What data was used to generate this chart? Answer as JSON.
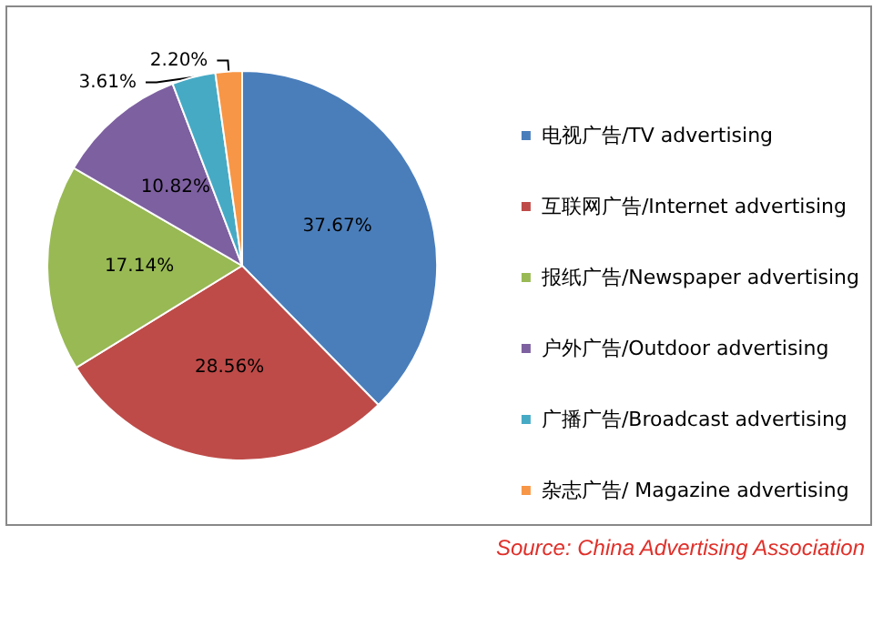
{
  "chart_data": {
    "type": "pie",
    "categories": [
      "电视广告/TV advertising",
      "互联网广告/Internet advertising",
      "报纸广告/Newspaper advertising",
      "户外广告/Outdoor advertising",
      "广播广告/Broadcast advertising",
      "杂志广告/ Magazine advertising"
    ],
    "values": [
      37.67,
      28.56,
      17.14,
      10.82,
      3.61,
      2.2
    ],
    "value_labels": [
      "37.67%",
      "28.56%",
      "17.14%",
      "10.82%",
      "3.61%",
      "2.20%"
    ],
    "colors": [
      "#4a7ebb",
      "#be4b48",
      "#98b954",
      "#7d60a0",
      "#46aac5",
      "#f79646"
    ],
    "legend": "right",
    "annotations": [
      "Source: China Advertising Association"
    ]
  }
}
